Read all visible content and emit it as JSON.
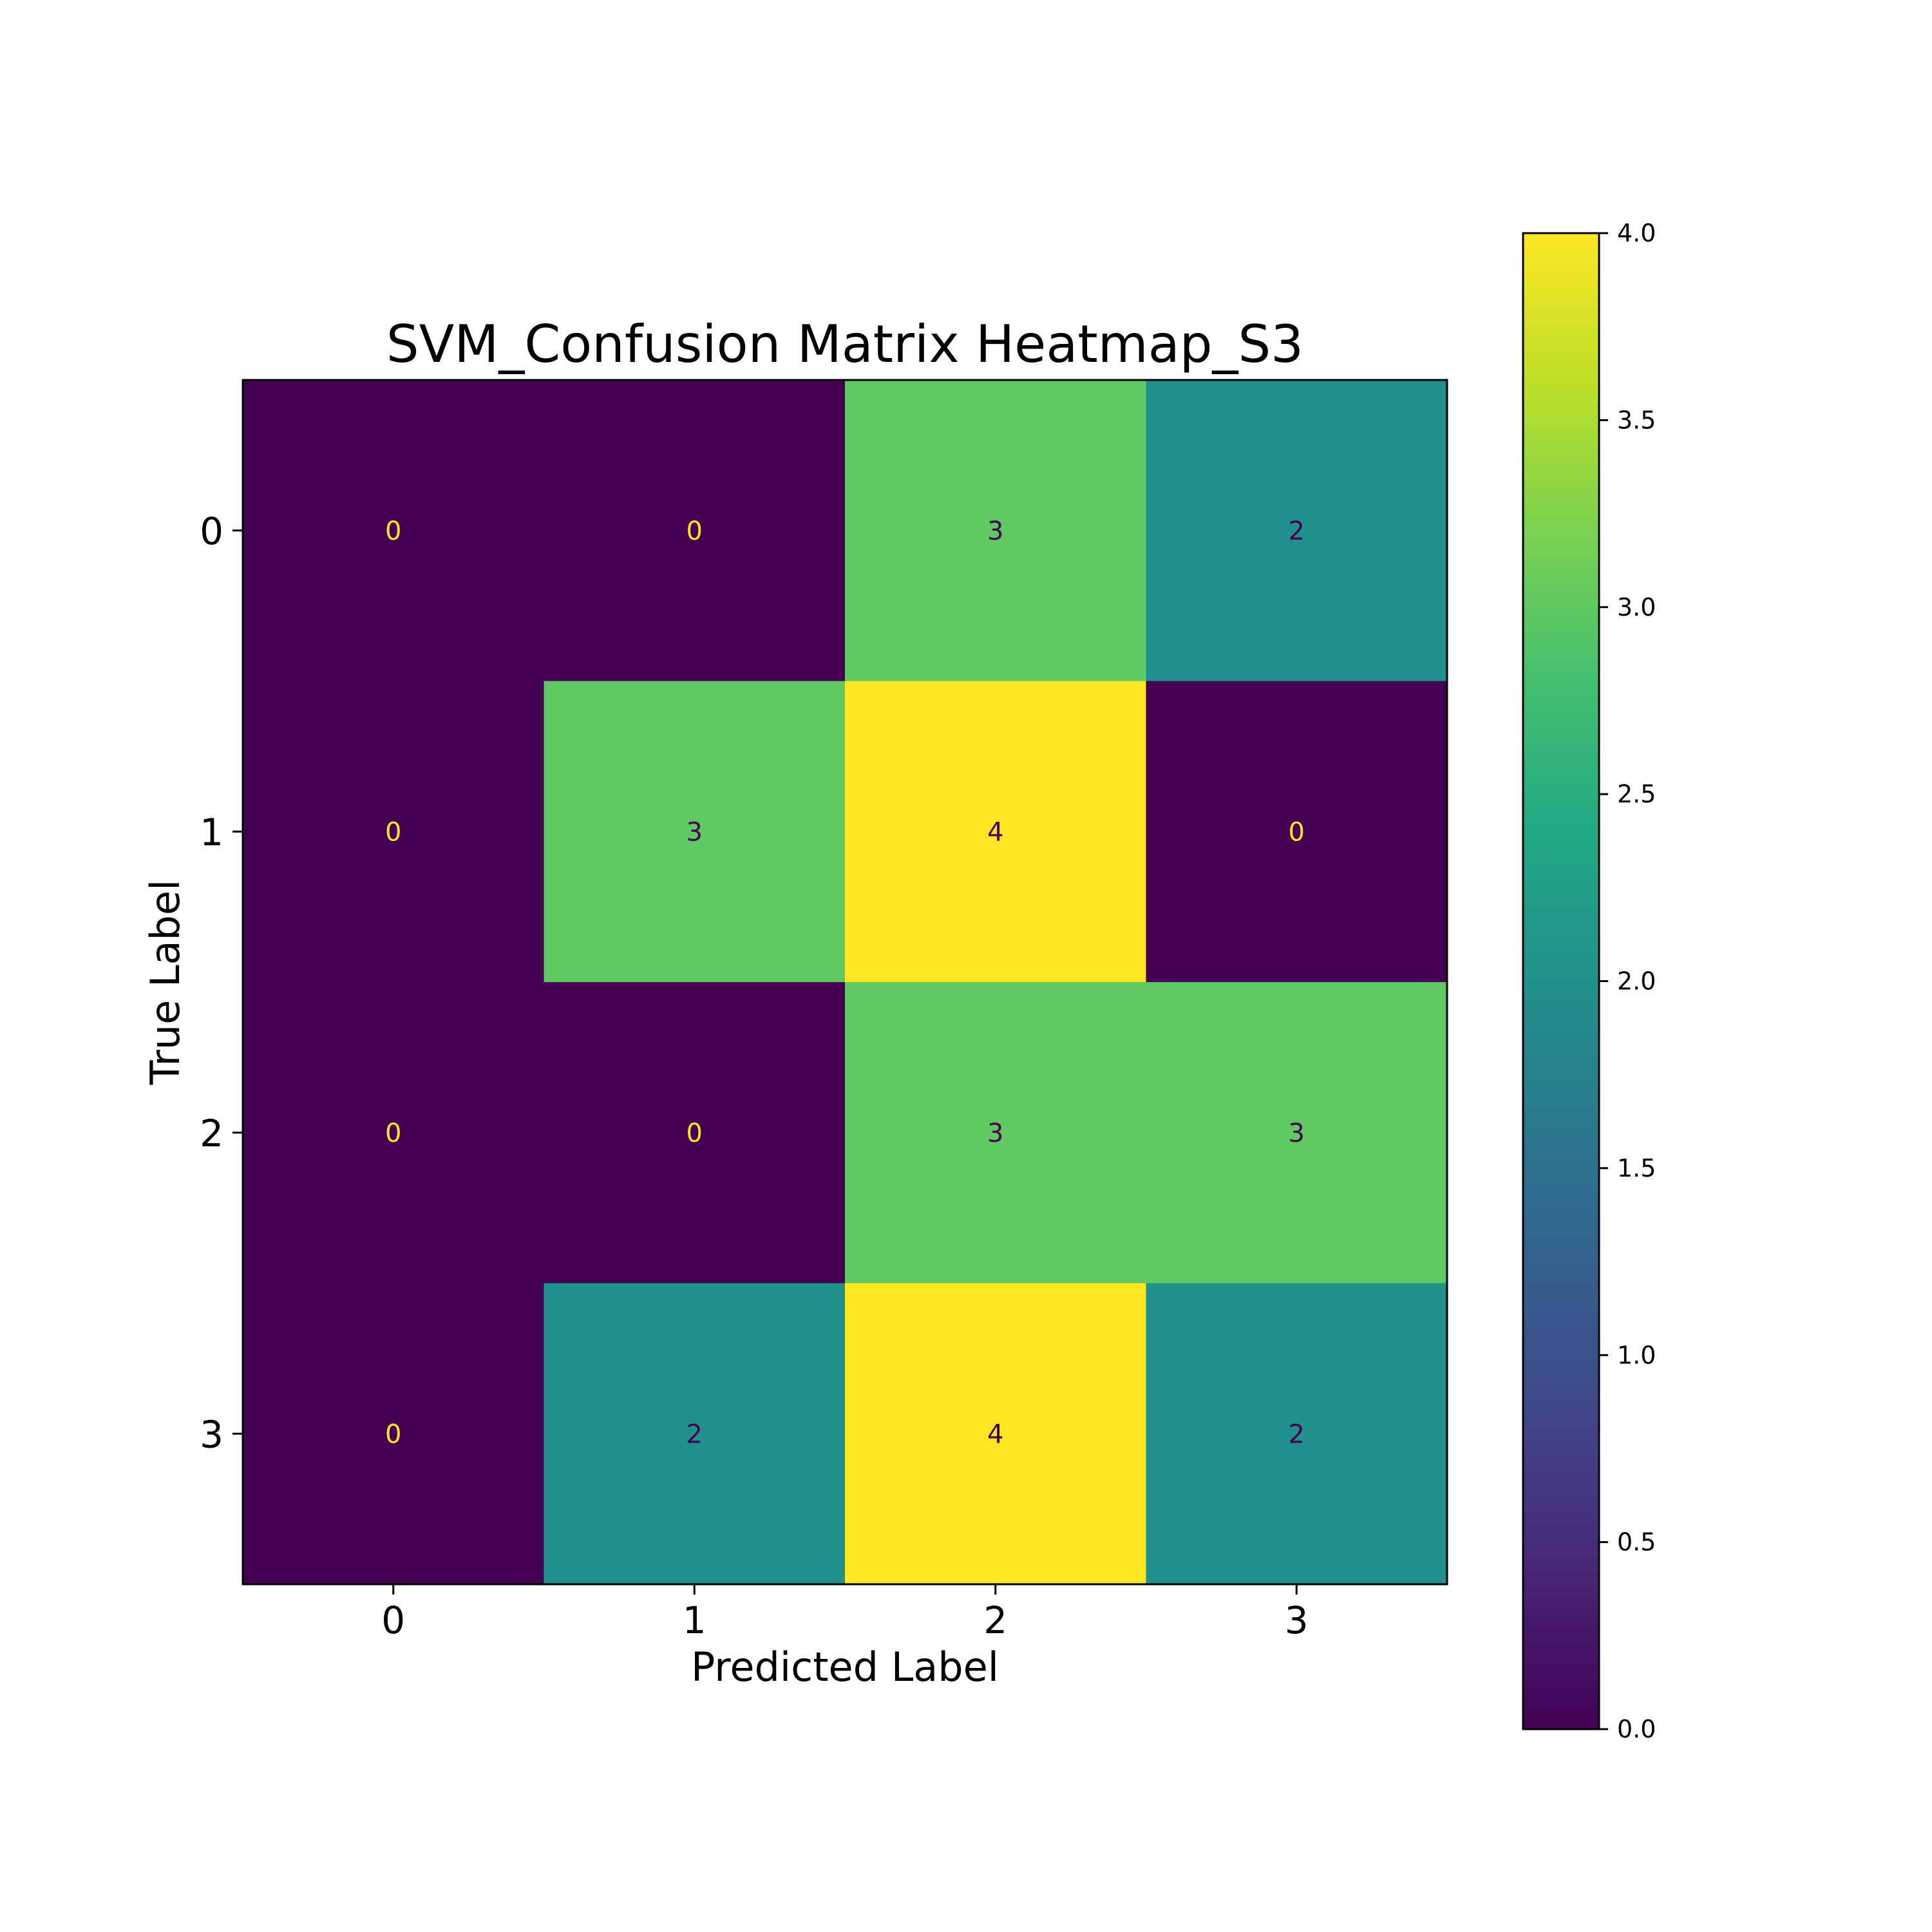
{
  "chart_data": {
    "type": "heatmap",
    "title": "SVM_Confusion Matrix Heatmap_S3",
    "xlabel": "Predicted Label",
    "ylabel": "True Label",
    "x_categories": [
      "0",
      "1",
      "2",
      "3"
    ],
    "y_categories": [
      "0",
      "1",
      "2",
      "3"
    ],
    "values": [
      [
        0,
        0,
        3,
        2
      ],
      [
        0,
        3,
        4,
        0
      ],
      [
        0,
        0,
        3,
        3
      ],
      [
        0,
        2,
        4,
        2
      ]
    ],
    "colormap": "viridis",
    "colorbar": {
      "min": 0.0,
      "max": 4.0,
      "ticks": [
        "0.0",
        "0.5",
        "1.0",
        "1.5",
        "2.0",
        "2.5",
        "3.0",
        "3.5",
        "4.0"
      ]
    },
    "grid": false
  }
}
